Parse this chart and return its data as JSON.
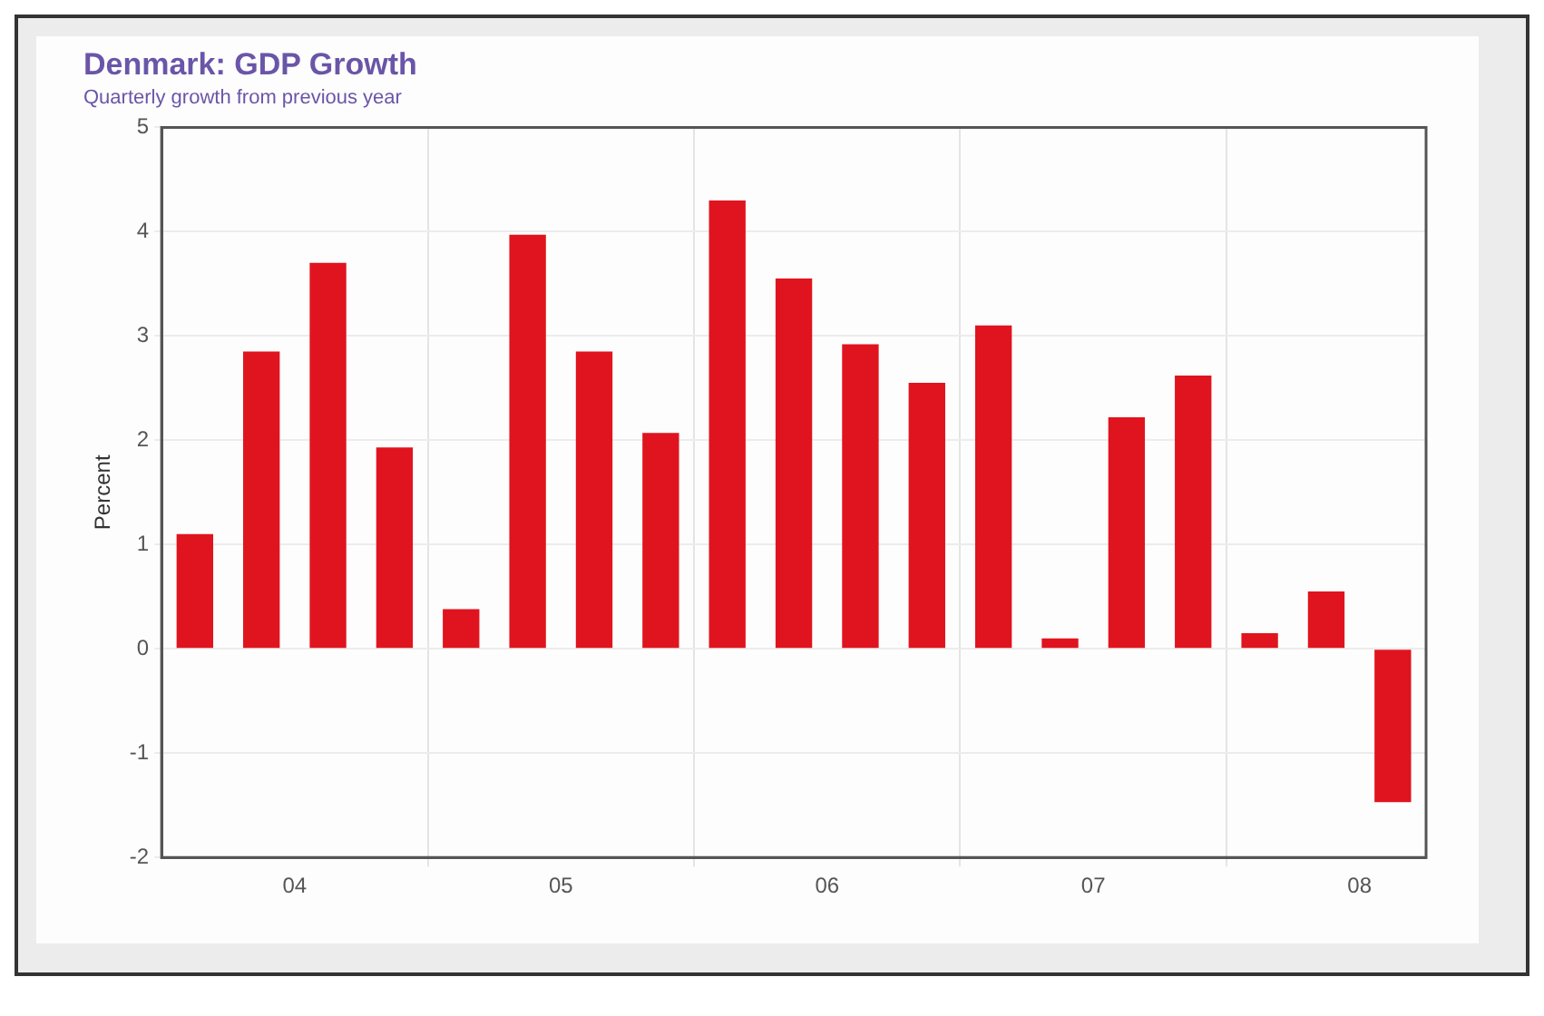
{
  "chart_data": {
    "type": "bar",
    "title": "Denmark: GDP Growth",
    "subtitle": "Quarterly growth from previous year",
    "ylabel": "Percent",
    "categories": [
      null,
      "04",
      null,
      null,
      null,
      "05",
      null,
      null,
      null,
      "06",
      null,
      null,
      null,
      "07",
      null,
      null,
      null,
      "08",
      null
    ],
    "values": [
      1.1,
      2.85,
      3.7,
      1.93,
      0.38,
      3.97,
      2.85,
      2.07,
      4.3,
      3.55,
      2.92,
      2.55,
      3.1,
      0.1,
      2.22,
      2.62,
      0.15,
      0.55,
      -1.47
    ],
    "color": "#e0141e",
    "ylim": [
      -2,
      5
    ],
    "yticks": [
      -2,
      -1,
      0,
      1,
      2,
      3,
      4,
      5
    ],
    "grid": true,
    "legend": false
  }
}
